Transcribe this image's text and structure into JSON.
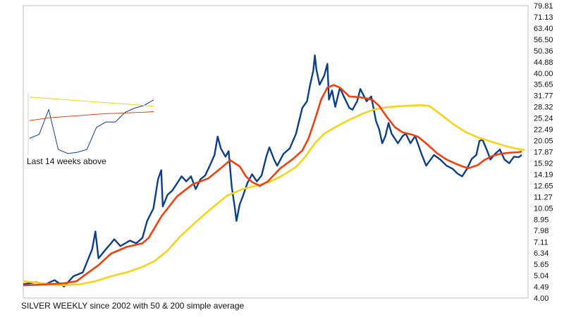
{
  "chart_data": {
    "type": "line",
    "title": "SILVER WEEKLY since 2002 with 50 & 200 simple average",
    "scale": "log",
    "ylim": [
      4.0,
      79.81
    ],
    "y_ticks": [
      "79.81",
      "71.13",
      "63.40",
      "56.50",
      "50.36",
      "44.88",
      "40.00",
      "35.65",
      "31.77",
      "28.32",
      "25.24",
      "22.49",
      "20.05",
      "17.87",
      "15.92",
      "14.19",
      "12.65",
      "11.27",
      "10.05",
      "8.95",
      "7.98",
      "7.11",
      "6.34",
      "5.65",
      "5.04",
      "4.49",
      "4.00"
    ],
    "grid": false,
    "legend": "none",
    "x_range": [
      2002,
      2018.1
    ],
    "series": [
      {
        "color": "#0d3f86",
        "points": [
          [
            2002.0,
            4.6
          ],
          [
            2002.4,
            4.7
          ],
          [
            2002.7,
            4.6
          ],
          [
            2003.0,
            4.8
          ],
          [
            2003.3,
            4.5
          ],
          [
            2003.6,
            5.0
          ],
          [
            2003.9,
            5.2
          ],
          [
            2004.2,
            6.6
          ],
          [
            2004.3,
            7.9
          ],
          [
            2004.4,
            6.0
          ],
          [
            2004.6,
            6.5
          ],
          [
            2004.8,
            7.0
          ],
          [
            2004.9,
            7.3
          ],
          [
            2005.1,
            6.8
          ],
          [
            2005.4,
            7.2
          ],
          [
            2005.6,
            7.0
          ],
          [
            2005.8,
            7.4
          ],
          [
            2005.95,
            8.8
          ],
          [
            2006.15,
            10.0
          ],
          [
            2006.3,
            13.5
          ],
          [
            2006.4,
            14.8
          ],
          [
            2006.45,
            10.2
          ],
          [
            2006.6,
            11.5
          ],
          [
            2006.75,
            12.0
          ],
          [
            2006.9,
            12.9
          ],
          [
            2007.05,
            13.9
          ],
          [
            2007.2,
            13.2
          ],
          [
            2007.35,
            13.9
          ],
          [
            2007.5,
            12.2
          ],
          [
            2007.65,
            13.5
          ],
          [
            2007.8,
            14.0
          ],
          [
            2007.95,
            15.5
          ],
          [
            2008.1,
            17.3
          ],
          [
            2008.2,
            20.9
          ],
          [
            2008.3,
            18.5
          ],
          [
            2008.45,
            17.0
          ],
          [
            2008.55,
            18.0
          ],
          [
            2008.65,
            12.5
          ],
          [
            2008.75,
            10.0
          ],
          [
            2008.8,
            8.8
          ],
          [
            2008.9,
            10.4
          ],
          [
            2009.0,
            11.3
          ],
          [
            2009.15,
            13.0
          ],
          [
            2009.3,
            14.2
          ],
          [
            2009.45,
            13.2
          ],
          [
            2009.6,
            14.0
          ],
          [
            2009.75,
            17.0
          ],
          [
            2009.85,
            18.7
          ],
          [
            2010.0,
            16.5
          ],
          [
            2010.1,
            15.5
          ],
          [
            2010.3,
            17.5
          ],
          [
            2010.5,
            18.5
          ],
          [
            2010.7,
            21.5
          ],
          [
            2010.9,
            28.0
          ],
          [
            2011.05,
            30.0
          ],
          [
            2011.15,
            35.5
          ],
          [
            2011.25,
            41.0
          ],
          [
            2011.3,
            48.0
          ],
          [
            2011.35,
            41.5
          ],
          [
            2011.45,
            35.5
          ],
          [
            2011.6,
            39.0
          ],
          [
            2011.7,
            44.0
          ],
          [
            2011.75,
            30.5
          ],
          [
            2011.85,
            33.5
          ],
          [
            2011.95,
            28.3
          ],
          [
            2012.1,
            34.5
          ],
          [
            2012.2,
            32.0
          ],
          [
            2012.4,
            28.0
          ],
          [
            2012.5,
            27.5
          ],
          [
            2012.65,
            30.0
          ],
          [
            2012.75,
            34.0
          ],
          [
            2012.95,
            30.0
          ],
          [
            2013.1,
            31.5
          ],
          [
            2013.25,
            24.5
          ],
          [
            2013.35,
            22.5
          ],
          [
            2013.45,
            19.5
          ],
          [
            2013.55,
            21.0
          ],
          [
            2013.65,
            24.0
          ],
          [
            2013.75,
            21.5
          ],
          [
            2013.95,
            19.5
          ],
          [
            2014.1,
            21.0
          ],
          [
            2014.2,
            21.5
          ],
          [
            2014.35,
            19.5
          ],
          [
            2014.5,
            21.0
          ],
          [
            2014.7,
            17.5
          ],
          [
            2014.85,
            15.5
          ],
          [
            2014.95,
            16.2
          ],
          [
            2015.1,
            17.3
          ],
          [
            2015.3,
            16.5
          ],
          [
            2015.5,
            15.5
          ],
          [
            2015.7,
            15.0
          ],
          [
            2015.85,
            14.3
          ],
          [
            2016.0,
            13.9
          ],
          [
            2016.15,
            15.0
          ],
          [
            2016.3,
            16.6
          ],
          [
            2016.45,
            17.3
          ],
          [
            2016.55,
            20.0
          ],
          [
            2016.65,
            20.2
          ],
          [
            2016.8,
            18.0
          ],
          [
            2016.9,
            16.5
          ],
          [
            2017.05,
            17.5
          ],
          [
            2017.2,
            18.3
          ],
          [
            2017.35,
            16.5
          ],
          [
            2017.5,
            15.9
          ],
          [
            2017.65,
            17.0
          ],
          [
            2017.8,
            16.9
          ],
          [
            2017.9,
            17.3
          ]
        ]
      },
      {
        "color": "#ee4110",
        "points": [
          [
            2002.0,
            4.55
          ],
          [
            2002.8,
            4.6
          ],
          [
            2003.3,
            4.65
          ],
          [
            2003.7,
            4.75
          ],
          [
            2004.0,
            5.1
          ],
          [
            2004.4,
            5.6
          ],
          [
            2004.8,
            6.3
          ],
          [
            2005.3,
            6.75
          ],
          [
            2005.8,
            7.0
          ],
          [
            2006.0,
            7.4
          ],
          [
            2006.4,
            9.2
          ],
          [
            2006.9,
            11.3
          ],
          [
            2007.4,
            12.8
          ],
          [
            2007.9,
            13.6
          ],
          [
            2008.3,
            15.1
          ],
          [
            2008.6,
            16.4
          ],
          [
            2008.9,
            15.4
          ],
          [
            2009.1,
            13.9
          ],
          [
            2009.3,
            13.1
          ],
          [
            2009.55,
            12.6
          ],
          [
            2009.8,
            13.2
          ],
          [
            2010.2,
            15.1
          ],
          [
            2010.6,
            16.6
          ],
          [
            2010.9,
            18.1
          ],
          [
            2011.1,
            20.5
          ],
          [
            2011.3,
            24.8
          ],
          [
            2011.5,
            30.5
          ],
          [
            2011.7,
            34.5
          ],
          [
            2011.9,
            35.4
          ],
          [
            2012.1,
            34.5
          ],
          [
            2012.4,
            31.5
          ],
          [
            2012.7,
            31.3
          ],
          [
            2012.95,
            30.9
          ],
          [
            2013.15,
            30.3
          ],
          [
            2013.35,
            28.6
          ],
          [
            2013.6,
            25.5
          ],
          [
            2013.85,
            23.0
          ],
          [
            2014.1,
            21.8
          ],
          [
            2014.4,
            21.3
          ],
          [
            2014.6,
            20.8
          ],
          [
            2014.9,
            19.2
          ],
          [
            2015.2,
            17.6
          ],
          [
            2015.5,
            16.5
          ],
          [
            2015.8,
            15.8
          ],
          [
            2016.0,
            15.4
          ],
          [
            2016.2,
            15.1
          ],
          [
            2016.5,
            15.6
          ],
          [
            2016.7,
            16.4
          ],
          [
            2016.95,
            17.1
          ],
          [
            2017.2,
            17.5
          ],
          [
            2017.5,
            17.7
          ],
          [
            2017.8,
            17.8
          ],
          [
            2017.9,
            17.9
          ]
        ]
      },
      {
        "color": "#f5d31a",
        "points": [
          [
            2002.0,
            4.75
          ],
          [
            2002.6,
            4.65
          ],
          [
            2003.2,
            4.55
          ],
          [
            2003.8,
            4.6
          ],
          [
            2004.3,
            4.75
          ],
          [
            2004.8,
            5.0
          ],
          [
            2005.3,
            5.2
          ],
          [
            2005.8,
            5.5
          ],
          [
            2006.2,
            5.85
          ],
          [
            2006.6,
            6.5
          ],
          [
            2007.0,
            7.5
          ],
          [
            2007.5,
            8.7
          ],
          [
            2008.0,
            10.0
          ],
          [
            2008.5,
            11.4
          ],
          [
            2009.0,
            12.2
          ],
          [
            2009.5,
            12.7
          ],
          [
            2009.9,
            13.2
          ],
          [
            2010.3,
            14.1
          ],
          [
            2010.7,
            15.3
          ],
          [
            2011.0,
            17.0
          ],
          [
            2011.3,
            19.5
          ],
          [
            2011.6,
            21.5
          ],
          [
            2012.0,
            23.2
          ],
          [
            2012.4,
            24.8
          ],
          [
            2012.8,
            26.3
          ],
          [
            2013.2,
            27.6
          ],
          [
            2013.6,
            28.2
          ],
          [
            2014.0,
            28.5
          ],
          [
            2014.4,
            28.7
          ],
          [
            2014.7,
            28.8
          ],
          [
            2014.95,
            28.6
          ],
          [
            2015.3,
            26.3
          ],
          [
            2015.7,
            23.8
          ],
          [
            2016.1,
            21.9
          ],
          [
            2016.5,
            20.7
          ],
          [
            2016.9,
            19.9
          ],
          [
            2017.3,
            19.1
          ],
          [
            2017.7,
            18.5
          ],
          [
            2018.0,
            18.2
          ]
        ]
      }
    ],
    "inset": {
      "label": "Last 14 weeks above",
      "series": [
        {
          "color": "#0d3f86",
          "values": [
            16.0,
            16.3,
            18.1,
            15.2,
            14.9,
            15.0,
            15.2,
            16.8,
            17.2,
            17.2,
            17.9,
            18.2,
            18.4,
            18.8
          ]
        },
        {
          "color": "#ee4110",
          "values": [
            17.3,
            17.4,
            17.5,
            17.55,
            17.6,
            17.65,
            17.7,
            17.75,
            17.8,
            17.82,
            17.85,
            17.88,
            17.9,
            17.95
          ]
        },
        {
          "color": "#f5d31a",
          "values": [
            19.0,
            18.95,
            18.9,
            18.85,
            18.8,
            18.75,
            18.7,
            18.65,
            18.6,
            18.55,
            18.5,
            18.45,
            18.4,
            18.35
          ]
        }
      ]
    }
  }
}
